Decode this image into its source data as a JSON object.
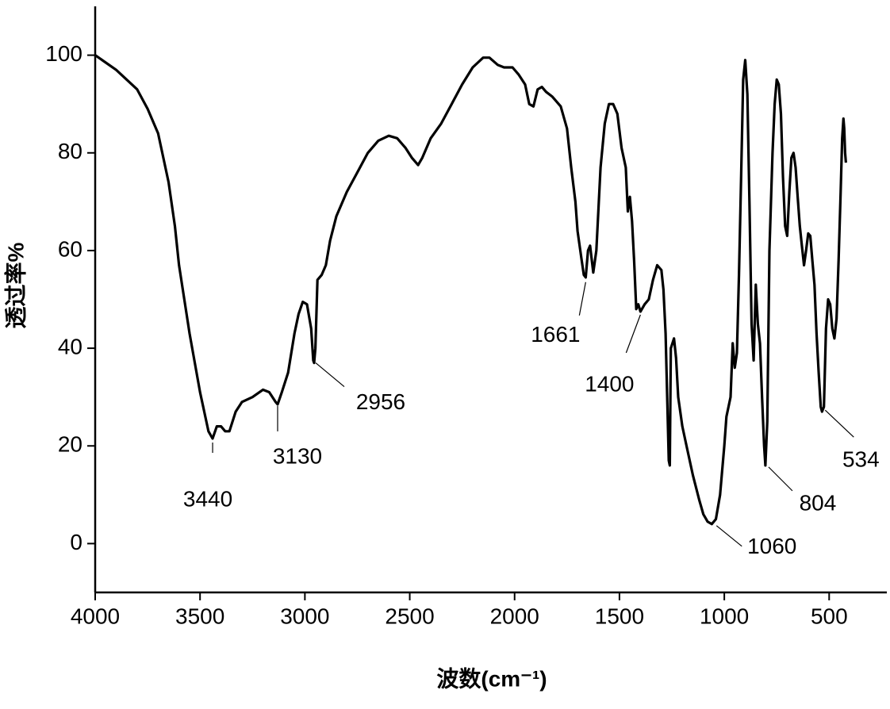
{
  "chart_data": {
    "type": "line",
    "xlabel": "波数(cm⁻¹)",
    "ylabel": "透过率%",
    "xlim": [
      4000,
      225
    ],
    "ylim": [
      -10,
      110
    ],
    "xticks": [
      4000,
      3500,
      3000,
      2500,
      2000,
      1500,
      1000,
      500
    ],
    "yticks": [
      0,
      20,
      40,
      60,
      80,
      100
    ],
    "series": [
      {
        "color": "#000000",
        "x": [
          4000,
          3900,
          3800,
          3750,
          3700,
          3650,
          3620,
          3600,
          3550,
          3500,
          3460,
          3440,
          3420,
          3400,
          3380,
          3360,
          3330,
          3300,
          3250,
          3200,
          3170,
          3140,
          3130,
          3110,
          3080,
          3050,
          3030,
          3010,
          2990,
          2970,
          2960,
          2956,
          2950,
          2940,
          2920,
          2900,
          2880,
          2850,
          2800,
          2750,
          2700,
          2650,
          2600,
          2560,
          2520,
          2490,
          2460,
          2440,
          2400,
          2350,
          2300,
          2250,
          2200,
          2150,
          2120,
          2080,
          2050,
          2010,
          1980,
          1950,
          1930,
          1910,
          1890,
          1870,
          1850,
          1820,
          1780,
          1750,
          1730,
          1710,
          1700,
          1680,
          1670,
          1661,
          1650,
          1640,
          1625,
          1610,
          1590,
          1570,
          1550,
          1530,
          1510,
          1490,
          1470,
          1460,
          1450,
          1440,
          1430,
          1420,
          1410,
          1400,
          1380,
          1360,
          1340,
          1320,
          1300,
          1290,
          1280,
          1265,
          1260,
          1255,
          1240,
          1230,
          1220,
          1200,
          1180,
          1150,
          1120,
          1100,
          1080,
          1060,
          1040,
          1020,
          1000,
          990,
          970,
          960,
          950,
          940,
          930,
          920,
          910,
          900,
          890,
          880,
          870,
          860,
          850,
          840,
          830,
          820,
          810,
          804,
          795,
          785,
          770,
          760,
          750,
          740,
          730,
          720,
          710,
          700,
          690,
          680,
          670,
          660,
          650,
          640,
          630,
          620,
          610,
          600,
          590,
          580,
          570,
          560,
          550,
          540,
          534,
          525,
          515,
          505,
          495,
          485,
          475,
          465,
          455,
          445,
          438,
          432,
          428,
          424,
          420
        ],
        "values": [
          100,
          97,
          93,
          89,
          84,
          74,
          65,
          57,
          43,
          31,
          23,
          21.5,
          24,
          24,
          23,
          23,
          27,
          29,
          30,
          31.5,
          31,
          29,
          28.5,
          31,
          35,
          43,
          47,
          49.5,
          49,
          44,
          37.5,
          37,
          40,
          54,
          55,
          57,
          62,
          67,
          72,
          76,
          80,
          82.5,
          83.5,
          83,
          81,
          79,
          77.5,
          79,
          83,
          86,
          90,
          94,
          97.5,
          99.5,
          99.5,
          98,
          97.5,
          97.5,
          96,
          94,
          90,
          89.5,
          93,
          93.5,
          92.5,
          91.5,
          89.5,
          85,
          77,
          70,
          64,
          58,
          55,
          54.5,
          60,
          61,
          55.5,
          60,
          77,
          86,
          90,
          90,
          88,
          81,
          77,
          68,
          71,
          66,
          58,
          48,
          49,
          47.5,
          49,
          50,
          54,
          57,
          56,
          52,
          43,
          17,
          16,
          40,
          42,
          38,
          30,
          24,
          20,
          14,
          9,
          6,
          4.5,
          4,
          5,
          10,
          20,
          26,
          30,
          41,
          36,
          39,
          55,
          75,
          95,
          99,
          92,
          70,
          45,
          37.5,
          53,
          45,
          41,
          30,
          20,
          16,
          25,
          60,
          80,
          90,
          95,
          94,
          88,
          75,
          65,
          63,
          72,
          79,
          80,
          77,
          71,
          65,
          61,
          57,
          60,
          63.5,
          63,
          58,
          53,
          43,
          35,
          28,
          27,
          28,
          44,
          50,
          49,
          44,
          42,
          46,
          58,
          72,
          83,
          87,
          85,
          80,
          78
        ]
      }
    ],
    "annotations": [
      {
        "x": 3440,
        "y": 21.5
      },
      {
        "x": 3130,
        "y": 28.5
      },
      {
        "x": 2956,
        "y": 37
      },
      {
        "x": 1661,
        "y": 54.5
      },
      {
        "x": 1400,
        "y": 47.5
      },
      {
        "x": 1060,
        "y": 4
      },
      {
        "x": 804,
        "y": 16
      },
      {
        "x": 534,
        "y": 27
      }
    ]
  }
}
